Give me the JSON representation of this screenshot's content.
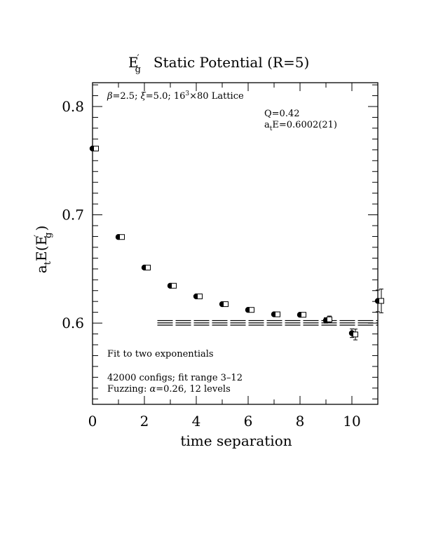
{
  "chart_data": {
    "type": "scatter",
    "title": {
      "main": "E",
      "main_sup": "′",
      "main_sub": "g",
      "rest": "Static Potential (R=5)"
    },
    "xlabel": "time separation",
    "ylabel": {
      "a": "a",
      "a_sub": "t",
      "mid": "E(E",
      "mid_sup": "′",
      "mid_sub": "g",
      "end": ")"
    },
    "xlim": [
      0,
      11.0
    ],
    "ylim": [
      0.525,
      0.822
    ],
    "x_ticks": [
      0,
      2,
      4,
      6,
      8,
      10
    ],
    "x_tick_labels": [
      "0",
      "2",
      "4",
      "6",
      "8",
      "10"
    ],
    "y_ticks": [
      0.6,
      0.7,
      0.8
    ],
    "y_tick_labels": [
      "0.6",
      "0.7",
      "0.8"
    ],
    "grid": false,
    "annotations": {
      "lattice": {
        "beta": "β",
        "t1": "=2.5; ",
        "xi": "ξ",
        "t2": "=5.0; 16",
        "sup": "3",
        "t3": "×80 Lattice"
      },
      "q": "Q=0.42",
      "energy": {
        "a": "a",
        "sub": "t",
        "rest": "E=0.6002(21)"
      },
      "fit": "Fit to two exponentials",
      "configs": "42000 configs; fit range 3–12",
      "fuzzing": {
        "pre": "Fuzzing: ",
        "alpha": "α",
        "post": "=0.26, 12 levels"
      }
    },
    "series": [
      {
        "marker": "filled-circle",
        "x": [
          0,
          1,
          2,
          3,
          4,
          5,
          6,
          7,
          8,
          9,
          10,
          11
        ],
        "y": [
          0.7612,
          0.6795,
          0.6513,
          0.6345,
          0.6247,
          0.6175,
          0.6122,
          0.6081,
          0.6077,
          0.6025,
          0.5907,
          0.6205
        ],
        "err": [
          0.0006,
          0.0007,
          0.0007,
          0.0008,
          0.0009,
          0.001,
          0.0011,
          0.0013,
          0.0016,
          0.0025,
          0.004,
          0.01
        ]
      },
      {
        "marker": "open-square",
        "x": [
          0,
          1,
          2,
          3,
          4,
          5,
          6,
          7,
          8,
          9,
          10,
          11
        ],
        "y": [
          0.7612,
          0.6795,
          0.6513,
          0.6345,
          0.6247,
          0.6175,
          0.6122,
          0.6081,
          0.6077,
          0.6035,
          0.5895,
          0.6205
        ],
        "err": [
          0.0006,
          0.0007,
          0.0007,
          0.0008,
          0.0009,
          0.001,
          0.0011,
          0.0013,
          0.0016,
          0.003,
          0.005,
          0.011
        ]
      }
    ],
    "fit": {
      "x_start": 2.5,
      "x_end": 11.0,
      "center": 0.6002,
      "error": 0.0021
    }
  }
}
